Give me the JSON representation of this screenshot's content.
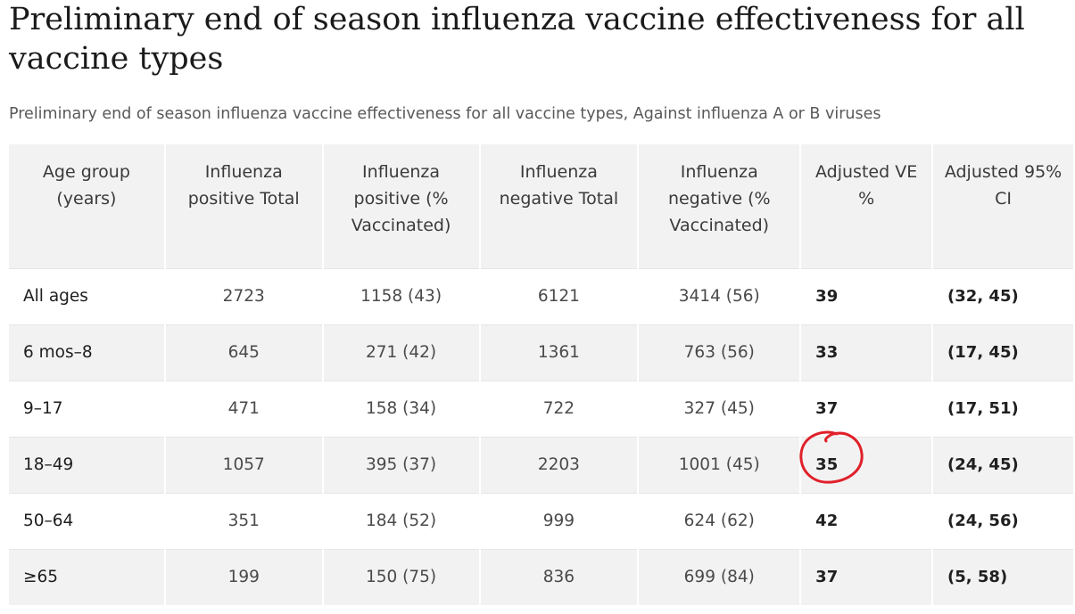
{
  "page_title": "Preliminary end of season influenza vaccine effectiveness for all vaccine types",
  "table_caption": "Preliminary end of season influenza vaccine effectiveness for all vaccine types, Against influenza A or B viruses",
  "columns": [
    "Age group (years)",
    "Influenza positive Total",
    "Influenza positive (% Vaccinated)",
    "Influenza negative Total",
    "Influenza negative (% Vaccinated)",
    "Adjusted VE %",
    "Adjusted 95% CI"
  ],
  "rows": [
    [
      "All ages",
      "2723",
      "1158 (43)",
      "6121",
      "3414 (56)",
      "39",
      "(32, 45)"
    ],
    [
      "6 mos–8",
      "645",
      "271 (42)",
      "1361",
      "763 (56)",
      "33",
      "(17, 45)"
    ],
    [
      "9–17",
      "471",
      "158 (34)",
      "722",
      "327 (45)",
      "37",
      "(17, 51)"
    ],
    [
      "18–49",
      "1057",
      "395 (37)",
      "2203",
      "1001 (45)",
      "35",
      "(24, 45)"
    ],
    [
      "50–64",
      "351",
      "184 (52)",
      "999",
      "624 (62)",
      "42",
      "(24, 56)"
    ],
    [
      "≥65",
      "199",
      "150 (75)",
      "836",
      "699 (84)",
      "37",
      "(5, 58)"
    ]
  ],
  "colors": {
    "header_background": "#f2f2f2",
    "alternate_row_background": "#f2f2f2",
    "annotation_circle": "#e0202a"
  },
  "annotation": {
    "icon": "hand-drawn-circle-icon",
    "highlighted_cell": "18–49 Adjusted VE %"
  }
}
